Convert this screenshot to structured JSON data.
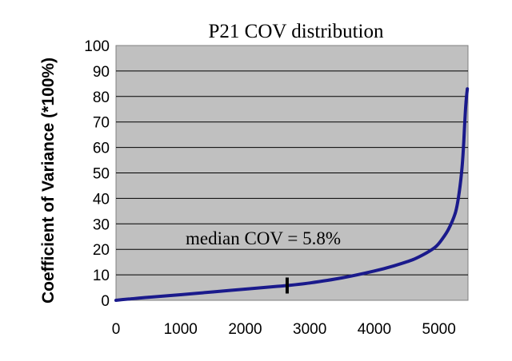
{
  "chart_data": {
    "type": "scatter",
    "title": "P21 COV distribution",
    "xlabel": "",
    "ylabel": "Coefficient of Variance (*100%)",
    "xlim": [
      0,
      5450
    ],
    "ylim": [
      0,
      100
    ],
    "x_ticks": [
      0,
      1000,
      2000,
      3000,
      4000,
      5000
    ],
    "y_ticks": [
      0,
      10,
      20,
      30,
      40,
      50,
      60,
      70,
      80,
      90,
      100
    ],
    "grid": true,
    "legend": "none",
    "colors": {
      "plot_bg": "#c0c0c0",
      "series": "#1a1a8c",
      "grid": "#000000",
      "marker": "#000000"
    },
    "series": [
      {
        "x": [
          0,
          200,
          500,
          1000,
          1500,
          2000,
          2500,
          2650,
          3000,
          3500,
          4000,
          4300,
          4600,
          4800,
          4950,
          5050,
          5150,
          5250,
          5300,
          5350,
          5380,
          5400,
          5420,
          5440
        ],
        "y": [
          0,
          0.5,
          1.2,
          2.2,
          3.3,
          4.4,
          5.5,
          5.8,
          6.8,
          8.8,
          11.5,
          13.5,
          16.0,
          18.5,
          21.0,
          24.0,
          28.0,
          34.0,
          40.0,
          50.0,
          60.0,
          70.0,
          78.0,
          83.0
        ]
      }
    ],
    "annotations": [
      {
        "text": "median COV = 5.8%",
        "x": 2650,
        "y": 5.8
      }
    ]
  }
}
